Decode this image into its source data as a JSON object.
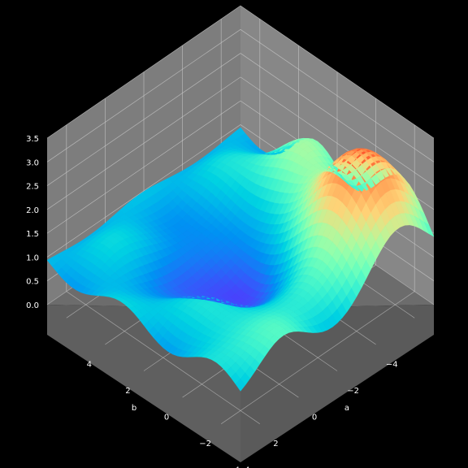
{
  "chart_data": {
    "type": "surface3d",
    "title": "",
    "xlabel": "a",
    "ylabel": "b",
    "zlabel": "",
    "xlim": [
      -5,
      5
    ],
    "ylim": [
      -5,
      5
    ],
    "zlim": [
      0,
      3.5
    ],
    "x_ticks": [
      "−4",
      "−2",
      "0",
      "2",
      "4"
    ],
    "y_ticks": [
      "−4",
      "−2",
      "0",
      "2",
      "4"
    ],
    "z_ticks": [
      "0.0",
      "0.5",
      "1.0",
      "1.5",
      "2.0",
      "2.5",
      "3.0",
      "3.5"
    ],
    "colormap": "rainbow",
    "view": {
      "elev": 45,
      "azim": 45
    },
    "grid": true,
    "theme": "dark",
    "peaks": [
      {
        "a": -3.2,
        "b": -3.2,
        "z": 3.3
      },
      {
        "a": 1.0,
        "b": -3.8,
        "z": 2.0
      },
      {
        "a": -4.0,
        "b": 2.8,
        "z": 1.7
      },
      {
        "a": 3.0,
        "b": 0.5,
        "z": 1.2
      },
      {
        "a": 0.5,
        "b": 3.0,
        "z": 1.2
      }
    ],
    "minimum": {
      "a": 1.0,
      "b": 0.5,
      "z": 0.1
    },
    "colors": {
      "background": "#000000",
      "pane": "#808080",
      "grid": "#cfcfcf",
      "text": "#ffffff"
    }
  }
}
